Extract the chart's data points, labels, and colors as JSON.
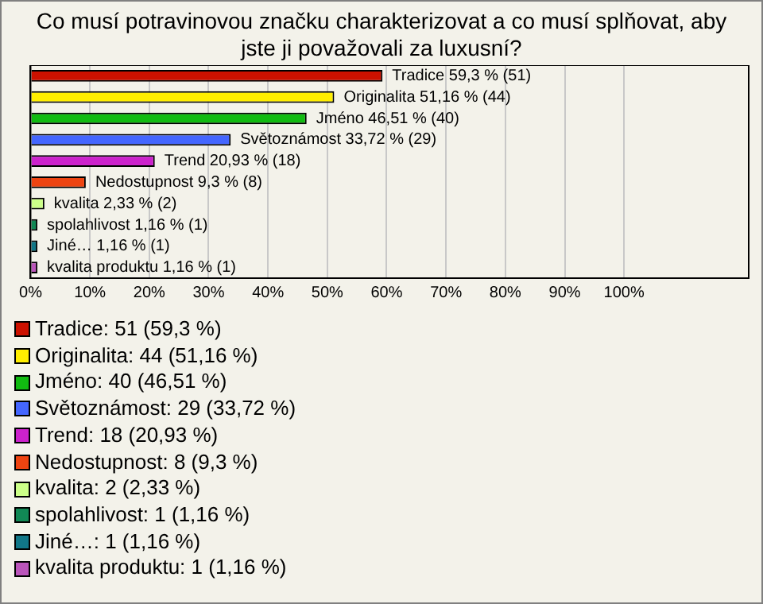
{
  "chart_data": {
    "type": "bar",
    "orientation": "horizontal",
    "title": "Co musí potravinovou značku charakterizovat a co musí splňovat, aby jste ji považovali za luxusní?",
    "categories": [
      "Tradice",
      "Originalita",
      "Jméno",
      "Světoznámost",
      "Trend",
      "Nedostupnost",
      "kvalita",
      "spolahlivost",
      "Jiné…",
      "kvalita produktu"
    ],
    "values": [
      59.3,
      51.16,
      46.51,
      33.72,
      20.93,
      9.3,
      2.33,
      1.16,
      1.16,
      1.16
    ],
    "colors": [
      "#cc1100",
      "#ffee00",
      "#11bb11",
      "#4466ff",
      "#cc22cc",
      "#ee4411",
      "#ccff88",
      "#118855",
      "#117788",
      "#bb55bb"
    ],
    "value_labels": [
      "59,3 % (51)",
      "51,16 % (44)",
      "46,51 % (40)",
      "33,72 % (29)",
      "20,93 % (18)",
      "9,3 % (8)",
      "2,33 % (2)",
      "1,16 % (1)",
      "1,16 % (1)",
      "1,16 % (1)"
    ],
    "xlim": [
      0,
      121
    ],
    "xticks": [
      {
        "value": 0,
        "label": "0%"
      },
      {
        "value": 10,
        "label": "10%"
      },
      {
        "value": 20,
        "label": "20%"
      },
      {
        "value": 30,
        "label": "30%"
      },
      {
        "value": 40,
        "label": "40%"
      },
      {
        "value": 50,
        "label": "50%"
      },
      {
        "value": 60,
        "label": "60%"
      },
      {
        "value": 70,
        "label": "70%"
      },
      {
        "value": 80,
        "label": "80%"
      },
      {
        "value": 90,
        "label": "90%"
      },
      {
        "value": 100,
        "label": "100%"
      }
    ],
    "grid": "x",
    "tick_labels": "x",
    "annotations": [
      "Tradice: 51 (59,3 %)",
      "Originalita: 44 (51,16 %)",
      "Jméno: 40 (46,51 %)",
      "Světoznámost: 29 (33,72 %)",
      "Trend: 18 (20,93 %)",
      "Nedostupnost: 8 (9,3 %)",
      "kvalita: 2 (2,33 %)",
      "spolahlivost: 1 (1,16 %)",
      "Jiné…: 1 (1,16 %)",
      "kvalita produktu: 1 (1,16 %)"
    ]
  }
}
